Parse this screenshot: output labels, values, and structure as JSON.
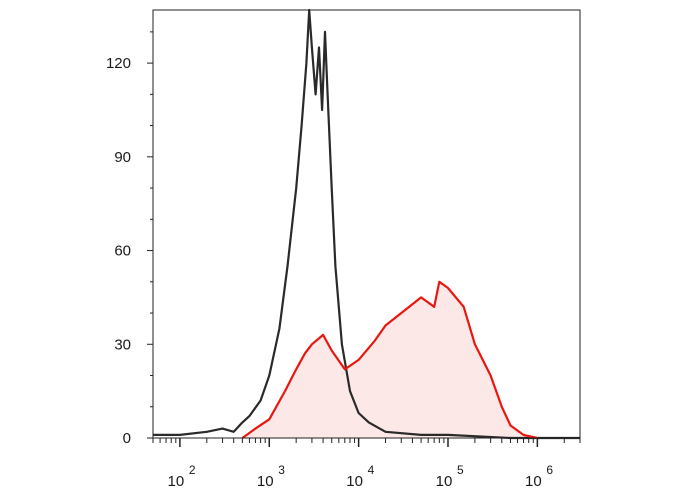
{
  "chart_data": {
    "type": "area",
    "xscale": "log",
    "xlim": [
      50,
      3000000
    ],
    "ylim": [
      0,
      137
    ],
    "grid": false,
    "legend": "none",
    "y_ticks": [
      {
        "value": 0,
        "label": "0"
      },
      {
        "value": 30,
        "label": "30"
      },
      {
        "value": 60,
        "label": "60"
      },
      {
        "value": 90,
        "label": "90"
      },
      {
        "value": 120,
        "label": "120"
      }
    ],
    "x_ticks": [
      {
        "value": 100,
        "base": "10",
        "exp": "2"
      },
      {
        "value": 1000,
        "base": "10",
        "exp": "3"
      },
      {
        "value": 10000,
        "base": "10",
        "exp": "4"
      },
      {
        "value": 100000,
        "base": "10",
        "exp": "5"
      },
      {
        "value": 1000000,
        "base": "10",
        "exp": "6"
      }
    ],
    "series": [
      {
        "color": "#2a2a2a",
        "fill": "none",
        "points": [
          [
            50,
            1
          ],
          [
            100,
            1
          ],
          [
            200,
            2
          ],
          [
            300,
            3
          ],
          [
            400,
            2
          ],
          [
            500,
            5
          ],
          [
            600,
            7
          ],
          [
            800,
            12
          ],
          [
            1000,
            20
          ],
          [
            1300,
            35
          ],
          [
            1600,
            55
          ],
          [
            2000,
            80
          ],
          [
            2300,
            100
          ],
          [
            2600,
            120
          ],
          [
            2800,
            137
          ],
          [
            3000,
            125
          ],
          [
            3300,
            110
          ],
          [
            3600,
            125
          ],
          [
            3900,
            105
          ],
          [
            4200,
            130
          ],
          [
            4500,
            110
          ],
          [
            5000,
            80
          ],
          [
            5500,
            55
          ],
          [
            6500,
            30
          ],
          [
            8000,
            15
          ],
          [
            10000,
            8
          ],
          [
            13000,
            5
          ],
          [
            20000,
            2
          ],
          [
            50000,
            1
          ],
          [
            100000,
            1
          ],
          [
            500000,
            0
          ],
          [
            3000000,
            0
          ]
        ]
      },
      {
        "color": "#e8170f",
        "fill": "#fde8e8",
        "points": [
          [
            500,
            0
          ],
          [
            700,
            3
          ],
          [
            1000,
            6
          ],
          [
            1500,
            15
          ],
          [
            2000,
            22
          ],
          [
            2500,
            27
          ],
          [
            3000,
            30
          ],
          [
            4000,
            33
          ],
          [
            5000,
            28
          ],
          [
            7000,
            22
          ],
          [
            10000,
            25
          ],
          [
            15000,
            31
          ],
          [
            20000,
            36
          ],
          [
            30000,
            40
          ],
          [
            50000,
            45
          ],
          [
            70000,
            42
          ],
          [
            80000,
            50
          ],
          [
            100000,
            48
          ],
          [
            150000,
            42
          ],
          [
            200000,
            30
          ],
          [
            300000,
            20
          ],
          [
            400000,
            10
          ],
          [
            500000,
            4
          ],
          [
            700000,
            1
          ],
          [
            1000000,
            0
          ]
        ]
      }
    ]
  }
}
